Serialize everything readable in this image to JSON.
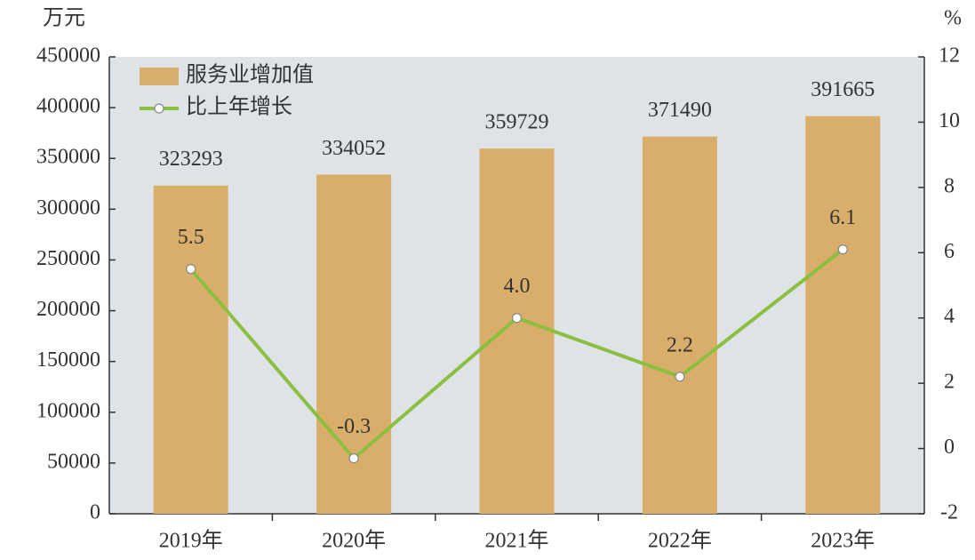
{
  "chart_data": {
    "type": "bar",
    "y_label": "万元",
    "y2_label": "%",
    "categories": [
      "2019年",
      "2020年",
      "2021年",
      "2022年",
      "2023年"
    ],
    "series": [
      {
        "name": "服务业增加值",
        "color": "#d9ae6b",
        "values": [
          323293,
          334052,
          359729,
          371490,
          391665
        ]
      },
      {
        "name": "比上年增长",
        "color": "#8cbf3f",
        "type": "line",
        "axis": "y2",
        "values": [
          5.5,
          -0.3,
          4,
          2.2,
          6.1
        ],
        "value_labels": [
          "5.5",
          "-0.3",
          "4.0",
          "2.2",
          "6.1"
        ]
      }
    ],
    "ylim": [
      0,
      450000
    ],
    "yticks": [
      0,
      50000,
      100000,
      150000,
      200000,
      250000,
      300000,
      350000,
      400000,
      450000
    ],
    "y2lim": [
      -2,
      12
    ],
    "y2ticks": [
      -2,
      0,
      2,
      4,
      6,
      8,
      10,
      12
    ],
    "background": "#dde3e6"
  }
}
